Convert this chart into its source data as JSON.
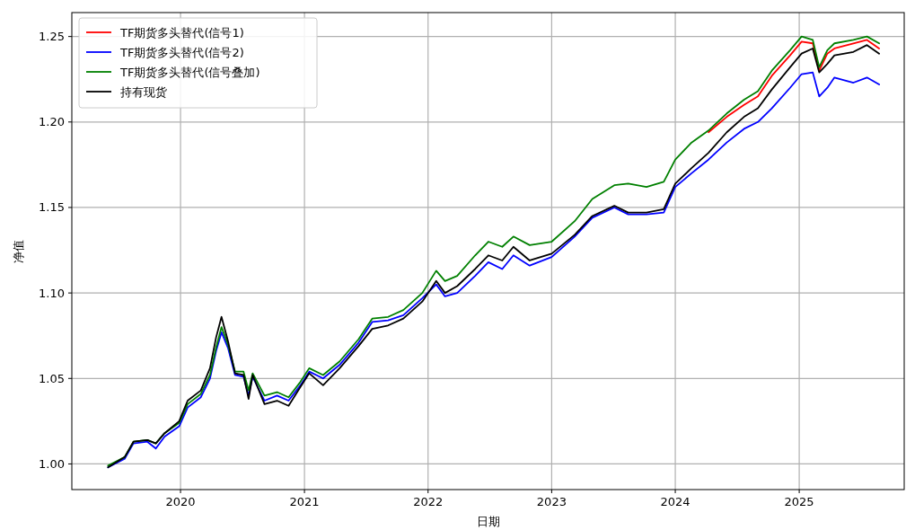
{
  "chart_data": {
    "type": "line",
    "xlabel": "日期",
    "ylabel": "净值",
    "x": [
      "2019-06-01",
      "2019-07-20",
      "2019-08-15",
      "2019-09-25",
      "2019-10-20",
      "2019-11-15",
      "2019-12-28",
      "2020-01-22",
      "2020-03-01",
      "2020-03-28",
      "2020-04-15",
      "2020-05-01",
      "2020-05-20",
      "2020-06-10",
      "2020-07-05",
      "2020-07-20",
      "2020-08-01",
      "2020-09-05",
      "2020-10-12",
      "2020-11-15",
      "2020-12-20",
      "2021-01-15",
      "2021-02-25",
      "2021-04-15",
      "2021-06-10",
      "2021-07-20",
      "2021-09-05",
      "2021-10-20",
      "2021-12-15",
      "2022-01-25",
      "2022-02-20",
      "2022-03-28",
      "2022-05-20",
      "2022-06-28",
      "2022-08-08",
      "2022-09-10",
      "2022-10-28",
      "2023-01-01",
      "2023-03-10",
      "2023-05-01",
      "2023-07-05",
      "2023-08-15",
      "2023-10-08",
      "2023-11-28",
      "2024-01-01",
      "2024-02-18",
      "2024-04-08",
      "2024-06-01",
      "2024-07-22",
      "2024-09-01",
      "2024-10-12",
      "2024-12-05",
      "2025-01-08",
      "2025-02-10",
      "2025-03-01",
      "2025-03-25",
      "2025-04-15",
      "2025-06-10",
      "2025-07-20",
      "2025-08-25"
    ],
    "series": [
      {
        "name": "TF期货多头替代(信号1)",
        "color": "#ff0000",
        "values": [
          null,
          null,
          null,
          null,
          null,
          null,
          null,
          null,
          null,
          null,
          null,
          null,
          null,
          null,
          null,
          null,
          null,
          null,
          null,
          null,
          null,
          null,
          null,
          null,
          null,
          null,
          null,
          null,
          null,
          null,
          null,
          null,
          null,
          null,
          null,
          null,
          null,
          null,
          null,
          null,
          null,
          null,
          null,
          null,
          null,
          null,
          1.194,
          1.203,
          1.21,
          1.215,
          1.227,
          1.239,
          1.247,
          1.246,
          1.23,
          1.24,
          1.243,
          1.246,
          1.248,
          1.243
        ]
      },
      {
        "name": "TF期货多头替代(信号2)",
        "color": "#0000ff",
        "values": [
          0.998,
          1.003,
          1.012,
          1.013,
          1.009,
          1.016,
          1.022,
          1.033,
          1.039,
          1.05,
          1.066,
          1.077,
          1.068,
          1.052,
          1.051,
          1.04,
          1.051,
          1.037,
          1.04,
          1.037,
          1.046,
          1.054,
          1.05,
          1.058,
          1.071,
          1.083,
          1.084,
          1.087,
          1.097,
          1.105,
          1.098,
          1.1,
          1.11,
          1.118,
          1.114,
          1.122,
          1.116,
          1.121,
          1.133,
          1.144,
          1.15,
          1.146,
          1.146,
          1.147,
          1.162,
          1.17,
          1.178,
          1.188,
          1.196,
          1.2,
          1.208,
          1.22,
          1.228,
          1.229,
          1.215,
          1.22,
          1.226,
          1.223,
          1.226,
          1.222
        ]
      },
      {
        "name": "TF期货多头替代(信号叠加)",
        "color": "#008000",
        "values": [
          0.999,
          1.004,
          1.013,
          1.014,
          1.012,
          1.018,
          1.024,
          1.035,
          1.041,
          1.052,
          1.068,
          1.08,
          1.07,
          1.054,
          1.054,
          1.043,
          1.053,
          1.04,
          1.042,
          1.039,
          1.048,
          1.056,
          1.052,
          1.06,
          1.073,
          1.085,
          1.086,
          1.09,
          1.1,
          1.113,
          1.107,
          1.11,
          1.122,
          1.13,
          1.127,
          1.133,
          1.128,
          1.13,
          1.142,
          1.155,
          1.163,
          1.164,
          1.162,
          1.165,
          1.178,
          1.188,
          1.195,
          1.205,
          1.213,
          1.218,
          1.23,
          1.242,
          1.25,
          1.248,
          1.232,
          1.242,
          1.246,
          1.248,
          1.25,
          1.246
        ]
      },
      {
        "name": "持有现货",
        "color": "#000000",
        "values": [
          0.998,
          1.004,
          1.013,
          1.014,
          1.012,
          1.018,
          1.025,
          1.037,
          1.043,
          1.056,
          1.074,
          1.086,
          1.072,
          1.053,
          1.052,
          1.038,
          1.052,
          1.035,
          1.037,
          1.034,
          1.045,
          1.053,
          1.046,
          1.056,
          1.069,
          1.079,
          1.081,
          1.085,
          1.095,
          1.107,
          1.1,
          1.104,
          1.114,
          1.122,
          1.119,
          1.127,
          1.119,
          1.123,
          1.134,
          1.145,
          1.151,
          1.147,
          1.147,
          1.149,
          1.164,
          1.173,
          1.182,
          1.194,
          1.203,
          1.208,
          1.219,
          1.232,
          1.24,
          1.243,
          1.229,
          1.234,
          1.239,
          1.241,
          1.245,
          1.24
        ]
      }
    ],
    "xlim": [
      "2019-02-14",
      "2025-11-07"
    ],
    "xticks": [
      "2020",
      "2021",
      "2022",
      "2023",
      "2024",
      "2025"
    ],
    "ylim": [
      0.985,
      1.264
    ],
    "yticks": [
      {
        "value": 1.0,
        "label": "1.00"
      },
      {
        "value": 1.05,
        "label": "1.05"
      },
      {
        "value": 1.1,
        "label": "1.10"
      },
      {
        "value": 1.15,
        "label": "1.15"
      },
      {
        "value": 1.2,
        "label": "1.20"
      },
      {
        "value": 1.25,
        "label": "1.25"
      }
    ],
    "grid": true,
    "legend": "top left"
  }
}
